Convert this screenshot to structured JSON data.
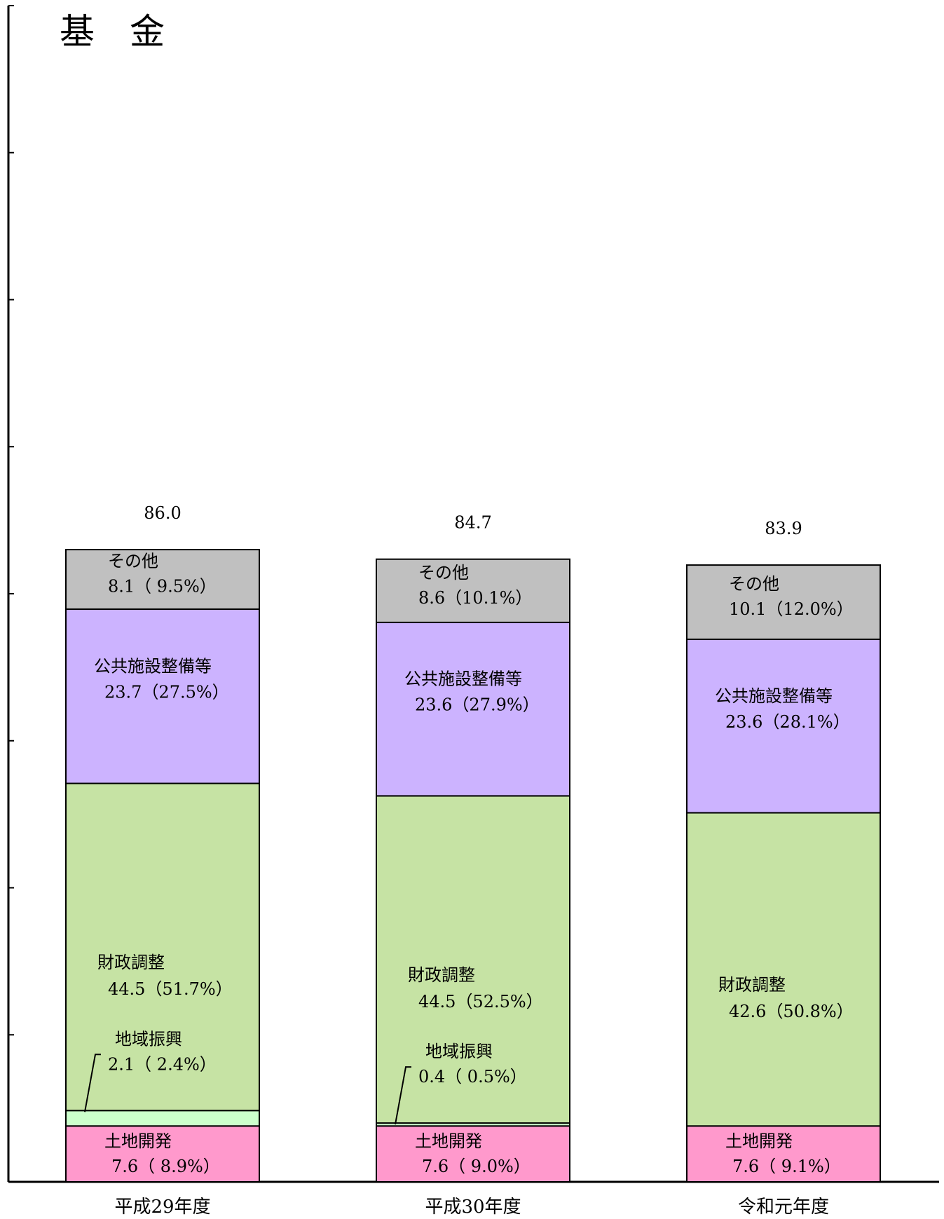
{
  "chart_data": {
    "type": "bar",
    "stacked": true,
    "title": "基　金",
    "xlabel": "",
    "ylabel": "",
    "categories": [
      "平成29年度",
      "平成30年度",
      "令和元年度"
    ],
    "totals": [
      "86.0",
      "84.7",
      "83.9"
    ],
    "total_values": [
      86.0,
      84.7,
      83.9
    ],
    "series": [
      {
        "name": "土地開発",
        "color": "#ff99cc",
        "values": [
          7.6,
          7.6,
          7.6
        ],
        "labels": [
          "7.6（ 8.9%）",
          "7.6（ 9.0%）",
          "7.6（ 9.1%）"
        ]
      },
      {
        "name": "地域振興",
        "color": "#ccffcc",
        "values": [
          2.1,
          0.4,
          0.0
        ],
        "labels": [
          "2.1（ 2.4%）",
          "0.4（ 0.5%）",
          ""
        ]
      },
      {
        "name": "財政調整",
        "color": "#c6e3a4",
        "values": [
          44.5,
          44.5,
          42.6
        ],
        "labels": [
          "44.5（51.7%）",
          "44.5（52.5%）",
          "42.6（50.8%）"
        ]
      },
      {
        "name": "公共施設整備等",
        "color": "#ccb3ff",
        "values": [
          23.7,
          23.6,
          23.6
        ],
        "labels": [
          "23.7（27.5%）",
          "23.6（27.9%）",
          "23.6（28.1%）"
        ]
      },
      {
        "name": "その他",
        "color": "#c0c0c0",
        "values": [
          8.1,
          8.6,
          10.1
        ],
        "labels": [
          "8.1（ 9.5%）",
          "8.6（10.1%）",
          "10.1（12.0%）"
        ]
      }
    ],
    "ylim": [
      0,
      160
    ],
    "y_tick_step": 20,
    "grid": false,
    "legend": "none"
  }
}
